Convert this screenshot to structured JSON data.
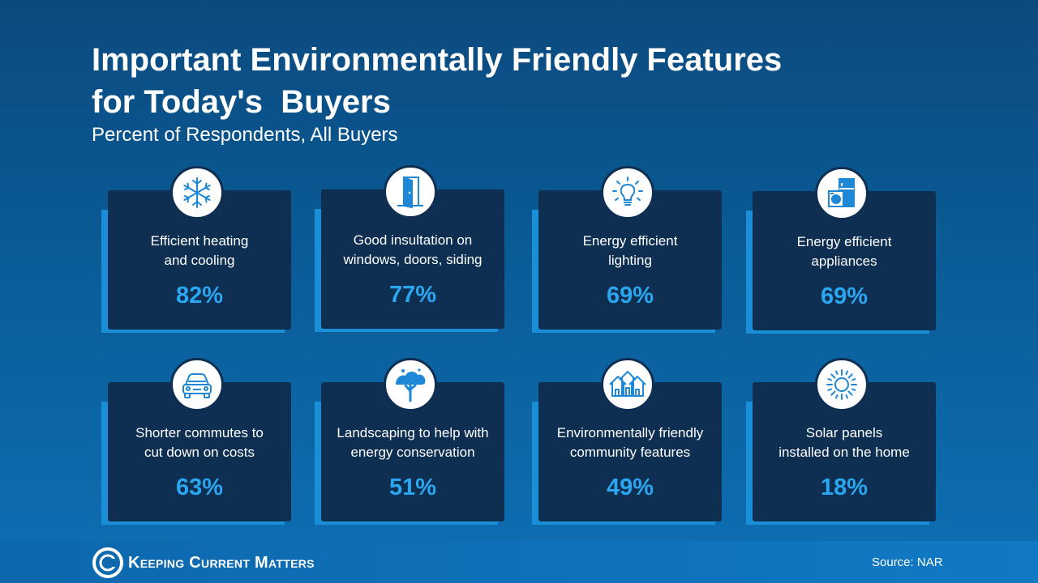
{
  "title_line1": "Important Environmentally Friendly Features",
  "title_line2": "for Today's  Buyers",
  "subtitle": "Percent of Respondents, All Buyers",
  "colors": {
    "card_bg": "#0e2f52",
    "accent_shadow": "#1a8fd8",
    "value_text": "#2aa7f0",
    "icon_stroke": "#1e88d6"
  },
  "cards": [
    {
      "line1": "Efficient heating",
      "line2": "and cooling",
      "value": "82%",
      "icon": "snowflake-icon"
    },
    {
      "line1": "Good insultation on",
      "line2": "windows, doors, siding",
      "value": "77%",
      "icon": "door-icon"
    },
    {
      "line1": "Energy efficient",
      "line2": "lighting",
      "value": "69%",
      "icon": "lightbulb-icon"
    },
    {
      "line1": "Energy efficient",
      "line2": "appliances",
      "value": "69%",
      "icon": "appliances-icon"
    },
    {
      "line1": "Shorter commutes to",
      "line2": "cut down on costs",
      "value": "63%",
      "icon": "car-icon"
    },
    {
      "line1": "Landscaping to help with",
      "line2": "energy conservation",
      "value": "51%",
      "icon": "tree-icon"
    },
    {
      "line1": "Environmentally friendly",
      "line2": "community features",
      "value": "49%",
      "icon": "houses-icon"
    },
    {
      "line1": "Solar panels",
      "line2": "installed on the home",
      "value": "18%",
      "icon": "sun-icon"
    }
  ],
  "footer": {
    "logo_text": "Keeping Current Matters",
    "source": "Source: NAR"
  }
}
